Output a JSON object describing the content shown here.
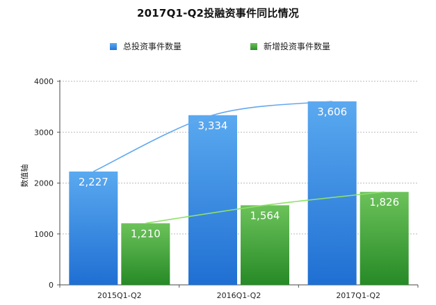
{
  "chart_data": {
    "type": "bar",
    "title": "2017Q1-Q2投融资事件同比情况",
    "ylabel": "数值轴",
    "xlabel": "",
    "categories": [
      "2015Q1-Q2",
      "2016Q1-Q2",
      "2017Q1-Q2"
    ],
    "ylim": [
      0,
      4000
    ],
    "yticks": [
      "0",
      "1000",
      "2000",
      "3000",
      "4000"
    ],
    "grid": true,
    "legend_position": "top",
    "series": [
      {
        "name": "总投资事件数量",
        "values": [
          2227,
          3334,
          3606
        ],
        "value_labels": [
          "2,227",
          "3,334",
          "3,606"
        ],
        "color": "#3a8fe3",
        "trend_color": "#62a8ee"
      },
      {
        "name": "新增投资事件数量",
        "values": [
          1210,
          1564,
          1826
        ],
        "value_labels": [
          "1,210",
          "1,564",
          "1,826"
        ],
        "color": "#3fa53a",
        "trend_color": "#8ee06a"
      }
    ]
  }
}
